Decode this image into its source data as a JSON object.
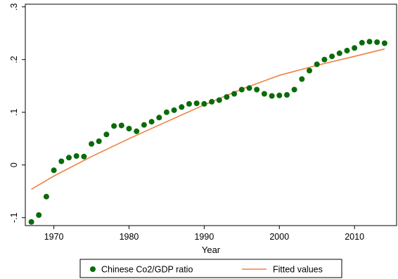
{
  "chart_data": {
    "type": "scatter",
    "title": "",
    "xlabel": "Year",
    "ylabel": "",
    "xlim": [
      1966.2,
      2015.6
    ],
    "ylim": [
      -0.115,
      0.305
    ],
    "x_ticks": [
      1970,
      1980,
      1990,
      2000,
      2010
    ],
    "x_tick_labels": [
      "1970",
      "1980",
      "1990",
      "2000",
      "2010"
    ],
    "y_ticks": [
      -0.1,
      0,
      0.1,
      0.2,
      0.3
    ],
    "y_tick_labels": [
      "-.1",
      "0",
      ".1",
      ".2",
      ".3"
    ],
    "grid": false,
    "legend_position": "bottom",
    "series": [
      {
        "name": "Chinese Co2/GDP ratio",
        "kind": "scatter",
        "color": "#0a6b0a",
        "x": [
          1967,
          1968,
          1969,
          1970,
          1971,
          1972,
          1973,
          1974,
          1975,
          1976,
          1977,
          1978,
          1979,
          1980,
          1981,
          1982,
          1983,
          1984,
          1985,
          1986,
          1987,
          1988,
          1989,
          1990,
          1991,
          1992,
          1993,
          1994,
          1995,
          1996,
          1997,
          1998,
          1999,
          2000,
          2001,
          2002,
          2003,
          2004,
          2005,
          2006,
          2007,
          2008,
          2009,
          2010,
          2011,
          2012,
          2013,
          2014
        ],
        "y": [
          -0.108,
          -0.095,
          -0.06,
          -0.01,
          0.007,
          0.014,
          0.017,
          0.016,
          0.04,
          0.045,
          0.058,
          0.074,
          0.075,
          0.069,
          0.064,
          0.076,
          0.082,
          0.09,
          0.1,
          0.104,
          0.11,
          0.116,
          0.117,
          0.116,
          0.12,
          0.123,
          0.129,
          0.135,
          0.143,
          0.146,
          0.143,
          0.135,
          0.131,
          0.132,
          0.133,
          0.143,
          0.163,
          0.179,
          0.191,
          0.2,
          0.206,
          0.212,
          0.217,
          0.222,
          0.232,
          0.234,
          0.233,
          0.231
        ]
      },
      {
        "name": "Fitted values",
        "kind": "line",
        "color": "#f08040",
        "x": [
          1967,
          1970,
          1975,
          1980,
          1985,
          1990,
          1995,
          2000,
          2005,
          2010,
          2014
        ],
        "y": [
          -0.046,
          -0.021,
          0.016,
          0.05,
          0.082,
          0.114,
          0.144,
          0.17,
          0.189,
          0.206,
          0.22
        ]
      }
    ]
  }
}
